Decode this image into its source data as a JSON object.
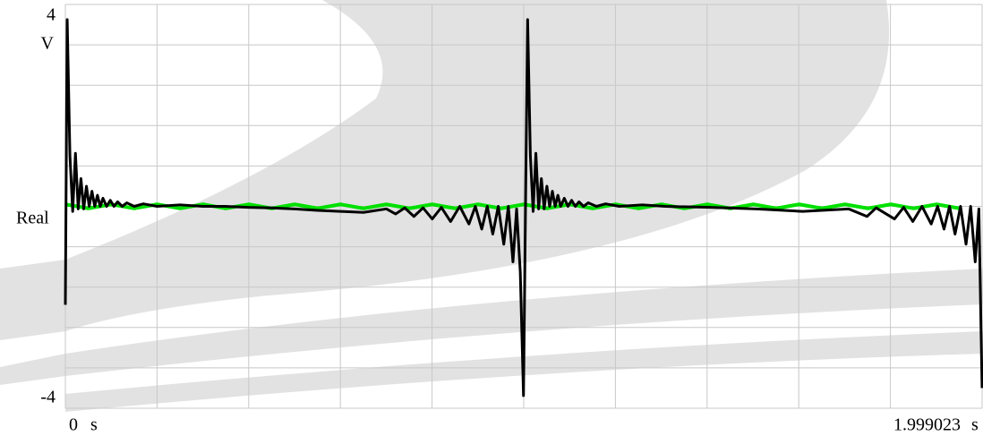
{
  "chart_data": {
    "type": "line",
    "y_unit": "V",
    "x_unit": "s",
    "y_label": "Real",
    "xlim": [
      0,
      1.999023
    ],
    "xticks": [
      0,
      1.999023
    ],
    "ylim": [
      -4,
      4
    ],
    "yticks": [
      4,
      -4
    ],
    "grid": true,
    "series": [
      {
        "color": "#00e000",
        "x": [
          0,
          0.05,
          0.1,
          0.15,
          0.2,
          0.25,
          0.3,
          0.35,
          0.4,
          0.45,
          0.5,
          0.55,
          0.6,
          0.65,
          0.7,
          0.75,
          0.8,
          0.85,
          0.9,
          0.95,
          1.0,
          1.05,
          1.1,
          1.15,
          1.2,
          1.25,
          1.3,
          1.35,
          1.4,
          1.45,
          1.5,
          1.55,
          1.6,
          1.65,
          1.7,
          1.75,
          1.8,
          1.85,
          1.9,
          1.95
        ],
        "values": [
          0.04,
          -0.04,
          0.04,
          -0.04,
          0.04,
          -0.04,
          0.04,
          -0.04,
          0.04,
          -0.04,
          0.04,
          -0.04,
          0.04,
          -0.04,
          0.04,
          -0.04,
          0.04,
          -0.04,
          0.04,
          -0.04,
          0.04,
          -0.04,
          0.04,
          -0.04,
          0.04,
          -0.04,
          0.04,
          -0.04,
          0.04,
          -0.04,
          0.04,
          -0.04,
          0.04,
          -0.04,
          0.04,
          -0.04,
          0.04,
          -0.04,
          0.04,
          -0.04
        ]
      },
      {
        "color": "#000000",
        "x": [
          0,
          0.004,
          0.01,
          0.016,
          0.022,
          0.028,
          0.034,
          0.04,
          0.046,
          0.052,
          0.058,
          0.064,
          0.07,
          0.076,
          0.082,
          0.09,
          0.098,
          0.106,
          0.114,
          0.124,
          0.134,
          0.15,
          0.17,
          0.2,
          0.25,
          0.3,
          0.35,
          0.4,
          0.45,
          0.5,
          0.55,
          0.6,
          0.65,
          0.7,
          0.72,
          0.74,
          0.76,
          0.78,
          0.8,
          0.82,
          0.84,
          0.86,
          0.88,
          0.894,
          0.908,
          0.92,
          0.932,
          0.944,
          0.956,
          0.966,
          0.976,
          0.984,
          0.992,
          0.999,
          1.004,
          1.008,
          1.014,
          1.02,
          1.026,
          1.032,
          1.038,
          1.044,
          1.05,
          1.056,
          1.062,
          1.068,
          1.074,
          1.08,
          1.088,
          1.096,
          1.104,
          1.112,
          1.12,
          1.13,
          1.14,
          1.158,
          1.178,
          1.208,
          1.258,
          1.308,
          1.408,
          1.508,
          1.608,
          1.708,
          1.748,
          1.768,
          1.808,
          1.828,
          1.848,
          1.868,
          1.888,
          1.902,
          1.916,
          1.928,
          1.94,
          1.952,
          1.964,
          1.974,
          1.984,
          1.992,
          1.999023
        ],
        "values": [
          -1.95,
          3.7,
          1.0,
          -0.1,
          1.05,
          -0.05,
          0.55,
          -0.05,
          0.4,
          0.0,
          0.3,
          0.0,
          0.22,
          0.0,
          0.16,
          0.0,
          0.12,
          0.0,
          0.09,
          0.0,
          0.07,
          0.0,
          0.05,
          0.0,
          0.03,
          0.0,
          0.0,
          -0.02,
          -0.03,
          -0.05,
          -0.08,
          -0.1,
          -0.12,
          -0.05,
          -0.15,
          -0.03,
          -0.2,
          -0.03,
          -0.25,
          -0.02,
          -0.3,
          0.0,
          -0.35,
          0.0,
          -0.45,
          0.0,
          -0.55,
          0.0,
          -0.75,
          0.0,
          -1.1,
          -0.05,
          -1.3,
          -3.75,
          0.5,
          3.7,
          1.0,
          -0.1,
          1.05,
          -0.05,
          0.55,
          -0.05,
          0.4,
          0.0,
          0.3,
          0.0,
          0.22,
          0.0,
          0.16,
          0.0,
          0.12,
          0.0,
          0.09,
          0.0,
          0.07,
          0.0,
          0.05,
          0.0,
          0.03,
          0.0,
          -0.02,
          -0.05,
          -0.1,
          -0.05,
          -0.2,
          -0.03,
          -0.25,
          -0.02,
          -0.3,
          0.0,
          -0.35,
          0.0,
          -0.45,
          0.0,
          -0.55,
          0.0,
          -0.75,
          0.0,
          -1.1,
          -0.05,
          -3.6
        ]
      }
    ]
  }
}
